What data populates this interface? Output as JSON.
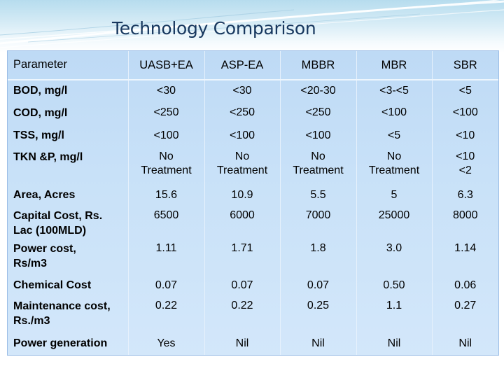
{
  "slide": {
    "title": "Technology Comparison",
    "accent_color": "#17375e",
    "table_bg_color": "#c8e1f8"
  },
  "table": {
    "columns": [
      "Parameter",
      "UASB+EA",
      "ASP-EA",
      "MBBR",
      "MBR",
      "SBR"
    ],
    "rows": [
      {
        "parameter": "BOD, mg/l",
        "values": [
          "<30",
          "<30",
          "<20-30",
          "<3-<5",
          "<5"
        ]
      },
      {
        "parameter": "COD, mg/l",
        "values": [
          "<250",
          "<250",
          "<250",
          "<100",
          "<100"
        ]
      },
      {
        "parameter": "TSS, mg/l",
        "values": [
          "<100",
          "<100",
          "<100",
          "<5",
          "<10"
        ]
      },
      {
        "parameter": "TKN &P, mg/l",
        "values": [
          [
            "No",
            "Treatment"
          ],
          [
            "No",
            "Treatment"
          ],
          [
            "No",
            "Treatment"
          ],
          [
            "No",
            "Treatment"
          ],
          [
            "<10",
            "<2"
          ]
        ]
      },
      {
        "parameter": "Area, Acres",
        "values": [
          "15.6",
          "10.9",
          "5.5",
          "5",
          "6.3"
        ]
      },
      {
        "parameter": [
          "Capital Cost, Rs.",
          "Lac (100MLD)"
        ],
        "values": [
          "6500",
          "6000",
          "7000",
          "25000",
          "8000"
        ]
      },
      {
        "parameter": [
          "Power cost,",
          "Rs/m3"
        ],
        "values": [
          "1.11",
          "1.71",
          "1.8",
          "3.0",
          "1.14"
        ]
      },
      {
        "parameter": "Chemical Cost",
        "values": [
          "0.07",
          "0.07",
          "0.07",
          "0.50",
          "0.06"
        ]
      },
      {
        "parameter": [
          "Maintenance cost,",
          "Rs./m3"
        ],
        "values": [
          "0.22",
          "0.22",
          "0.25",
          "1.1",
          "0.27"
        ]
      },
      {
        "parameter": "Power generation",
        "values": [
          "Yes",
          "Nil",
          "Nil",
          "Nil",
          "Nil"
        ]
      }
    ]
  }
}
